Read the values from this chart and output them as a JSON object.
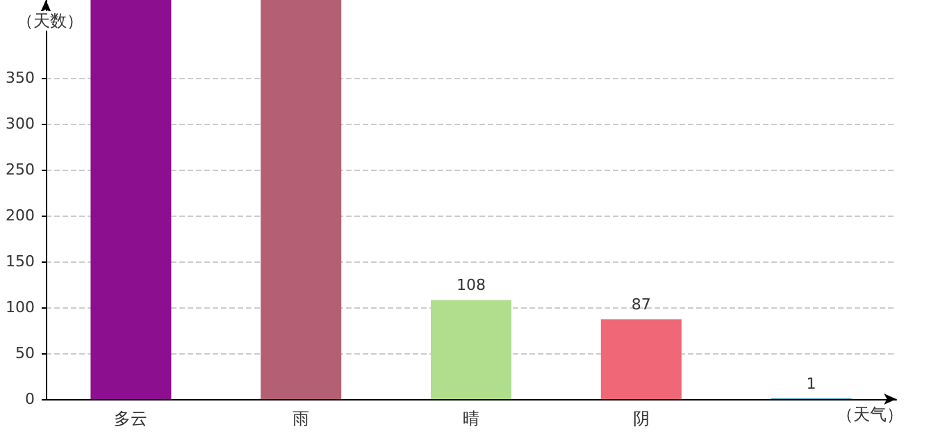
{
  "chart_data": {
    "type": "bar",
    "xlabel": "（天气）",
    "ylabel": "（天数）",
    "categories": [
      "多云",
      "雨",
      "晴",
      "阴",
      null
    ],
    "values": [
      435,
      435,
      108,
      87,
      1
    ],
    "colors": [
      "#8b0f8f",
      "#b55f74",
      "#b0de8c",
      "#f06878",
      "#4a9cc0"
    ],
    "value_labels": [
      null,
      null,
      "108",
      "87",
      "1"
    ],
    "ylim": [
      0,
      435
    ],
    "yticks": [
      0,
      50,
      100,
      150,
      200,
      250,
      300,
      350
    ],
    "grid": "y"
  }
}
